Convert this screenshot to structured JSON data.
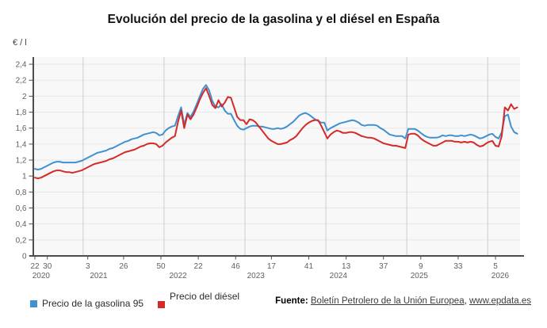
{
  "title": "Evolución del precio de la gasolina y el diésel en España",
  "y_axis_unit": "€ / l",
  "legend": {
    "gasolina_label": "Precio de la gasolina 95",
    "diesel_label": "Precio del diésel"
  },
  "footer": {
    "source_label": "Fuente:",
    "source_link": "Boletín Petrolero de la Unión Europea",
    "separator": ", ",
    "site_link": "www.epdata.es"
  },
  "colors": {
    "gasolina": "#4190cf",
    "diesel": "#d42a28",
    "plot_bg": "#f8f8f8",
    "grid": "#e7e7e7",
    "year_grid": "#cdcdcd",
    "axis": "#4d4d4d",
    "tick_text": "#5f5f5f"
  },
  "chart_data": {
    "type": "line",
    "title": "Evolución del precio de la gasolina y el diésel en España",
    "ylabel": "€ / l",
    "ylim": [
      0,
      2.4
    ],
    "grid": true,
    "legend_position": "bottom-left",
    "x_axis_note": "semanas (datos semanales desde la semana 22 de 2020 hasta principios de 2026)",
    "step_weeks": 2,
    "y_ticks": [
      {
        "label": "0",
        "value": 0
      },
      {
        "label": "0,2",
        "value": 0.2
      },
      {
        "label": "0,4",
        "value": 0.4
      },
      {
        "label": "0,6",
        "value": 0.6
      },
      {
        "label": "0,8",
        "value": 0.8
      },
      {
        "label": "1",
        "value": 1
      },
      {
        "label": "1,2",
        "value": 1.2
      },
      {
        "label": "1,4",
        "value": 1.4
      },
      {
        "label": "1,6",
        "value": 1.6
      },
      {
        "label": "1,8",
        "value": 1.8
      },
      {
        "label": "2",
        "value": 2
      },
      {
        "label": "2,2",
        "value": 2.2
      },
      {
        "label": "2,4",
        "value": 2.4
      }
    ],
    "x_week_ticks": [
      {
        "label": "22",
        "week": 0
      },
      {
        "label": "30",
        "week": 8
      },
      {
        "label": "3",
        "week": 34
      },
      {
        "label": "26",
        "week": 57
      },
      {
        "label": "50",
        "week": 81
      },
      {
        "label": "22",
        "week": 105
      },
      {
        "label": "46",
        "week": 129
      },
      {
        "label": "17",
        "week": 152
      },
      {
        "label": "41",
        "week": 176
      },
      {
        "label": "13",
        "week": 200
      },
      {
        "label": "37",
        "week": 224
      },
      {
        "label": "9",
        "week": 248
      },
      {
        "label": "33",
        "week": 272
      },
      {
        "label": "5",
        "week": 296
      }
    ],
    "x_year_labels": [
      {
        "label": "2020",
        "week": 4
      },
      {
        "label": "2021",
        "week": 41
      },
      {
        "label": "2022",
        "week": 92
      },
      {
        "label": "2023",
        "week": 142
      },
      {
        "label": "2024",
        "week": 195
      },
      {
        "label": "2025",
        "week": 247
      },
      {
        "label": "2026",
        "week": 299
      }
    ],
    "year_boundaries_weeks": [
      31,
      83,
      135,
      187,
      239,
      291
    ],
    "series": [
      {
        "name": "Precio de la gasolina 95",
        "color": "#4190cf",
        "values": [
          1.09,
          1.08,
          1.09,
          1.11,
          1.13,
          1.15,
          1.17,
          1.18,
          1.18,
          1.17,
          1.17,
          1.17,
          1.17,
          1.17,
          1.18,
          1.19,
          1.21,
          1.23,
          1.25,
          1.27,
          1.29,
          1.3,
          1.31,
          1.32,
          1.34,
          1.35,
          1.37,
          1.39,
          1.41,
          1.43,
          1.44,
          1.46,
          1.47,
          1.48,
          1.5,
          1.52,
          1.53,
          1.54,
          1.55,
          1.54,
          1.51,
          1.52,
          1.57,
          1.6,
          1.62,
          1.63,
          1.75,
          1.86,
          1.64,
          1.79,
          1.74,
          1.81,
          1.9,
          2.0,
          2.09,
          2.14,
          2.07,
          1.94,
          1.87,
          1.86,
          1.9,
          1.82,
          1.78,
          1.78,
          1.7,
          1.63,
          1.59,
          1.58,
          1.6,
          1.62,
          1.63,
          1.63,
          1.62,
          1.62,
          1.61,
          1.6,
          1.59,
          1.59,
          1.6,
          1.59,
          1.6,
          1.62,
          1.65,
          1.68,
          1.72,
          1.76,
          1.78,
          1.79,
          1.77,
          1.74,
          1.71,
          1.69,
          1.67,
          1.67,
          1.57,
          1.6,
          1.62,
          1.64,
          1.66,
          1.67,
          1.68,
          1.69,
          1.7,
          1.69,
          1.67,
          1.64,
          1.63,
          1.64,
          1.64,
          1.64,
          1.63,
          1.6,
          1.58,
          1.55,
          1.52,
          1.51,
          1.5,
          1.5,
          1.5,
          1.47,
          1.59,
          1.59,
          1.59,
          1.57,
          1.54,
          1.51,
          1.49,
          1.48,
          1.48,
          1.48,
          1.49,
          1.51,
          1.5,
          1.51,
          1.51,
          1.5,
          1.5,
          1.51,
          1.5,
          1.51,
          1.52,
          1.51,
          1.49,
          1.47,
          1.48,
          1.5,
          1.52,
          1.53,
          1.49,
          1.47,
          1.55,
          1.75,
          1.77,
          1.62,
          1.55,
          1.53
        ]
      },
      {
        "name": "Precio del diésel",
        "color": "#d42a28",
        "values": [
          0.98,
          0.97,
          0.98,
          1.0,
          1.02,
          1.04,
          1.06,
          1.07,
          1.07,
          1.06,
          1.05,
          1.05,
          1.04,
          1.05,
          1.06,
          1.07,
          1.09,
          1.11,
          1.13,
          1.15,
          1.16,
          1.17,
          1.18,
          1.19,
          1.21,
          1.22,
          1.24,
          1.26,
          1.28,
          1.3,
          1.31,
          1.32,
          1.33,
          1.35,
          1.37,
          1.38,
          1.4,
          1.41,
          1.41,
          1.4,
          1.36,
          1.38,
          1.42,
          1.45,
          1.48,
          1.5,
          1.68,
          1.82,
          1.6,
          1.77,
          1.71,
          1.77,
          1.86,
          1.96,
          2.04,
          2.1,
          2.0,
          1.89,
          1.85,
          1.95,
          1.87,
          1.92,
          1.99,
          1.98,
          1.86,
          1.74,
          1.7,
          1.7,
          1.65,
          1.71,
          1.7,
          1.67,
          1.62,
          1.57,
          1.52,
          1.47,
          1.44,
          1.42,
          1.4,
          1.4,
          1.41,
          1.42,
          1.45,
          1.47,
          1.5,
          1.55,
          1.6,
          1.64,
          1.67,
          1.69,
          1.7,
          1.7,
          1.63,
          1.55,
          1.47,
          1.52,
          1.55,
          1.57,
          1.56,
          1.54,
          1.54,
          1.55,
          1.55,
          1.54,
          1.52,
          1.5,
          1.49,
          1.48,
          1.48,
          1.47,
          1.45,
          1.43,
          1.41,
          1.4,
          1.39,
          1.38,
          1.38,
          1.37,
          1.36,
          1.35,
          1.52,
          1.53,
          1.53,
          1.51,
          1.47,
          1.44,
          1.42,
          1.4,
          1.38,
          1.38,
          1.4,
          1.42,
          1.44,
          1.44,
          1.44,
          1.43,
          1.43,
          1.42,
          1.43,
          1.42,
          1.43,
          1.42,
          1.39,
          1.37,
          1.38,
          1.41,
          1.43,
          1.44,
          1.38,
          1.37,
          1.5,
          1.86,
          1.82,
          1.9,
          1.84,
          1.86
        ]
      }
    ]
  }
}
